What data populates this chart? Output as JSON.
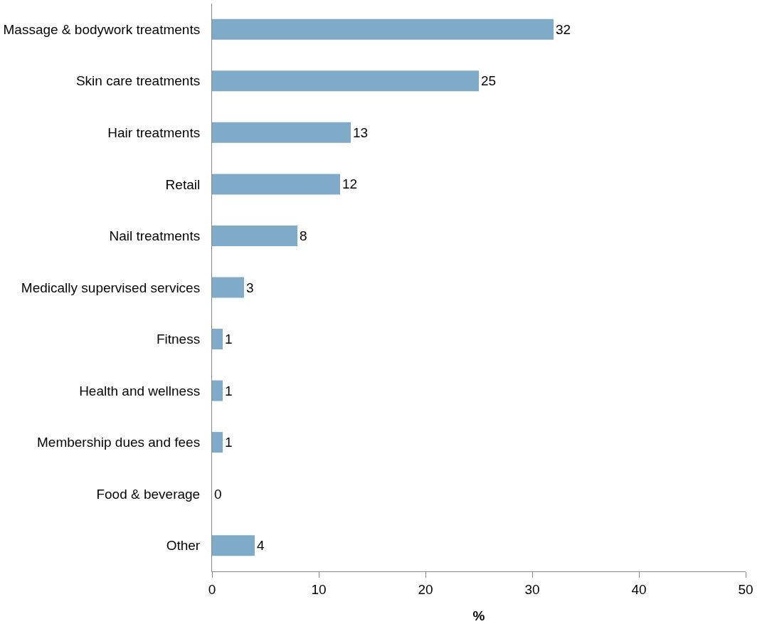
{
  "chart_data": {
    "type": "bar",
    "orientation": "horizontal",
    "xlabel": "%",
    "categories": [
      "Massage & bodywork treatments",
      "Skin care treatments",
      "Hair treatments",
      "Retail",
      "Nail treatments",
      "Medically supervised services",
      "Fitness",
      "Health and wellness",
      "Membership dues and fees",
      "Food & beverage",
      "Other"
    ],
    "values": [
      32,
      25,
      13,
      12,
      8,
      3,
      1,
      1,
      1,
      0,
      4
    ],
    "color": "#7faac8",
    "data_labels": true,
    "xlim": [
      0,
      50
    ],
    "xticks": [
      0,
      10,
      20,
      30,
      40,
      50
    ],
    "grid": false,
    "legend": false
  }
}
